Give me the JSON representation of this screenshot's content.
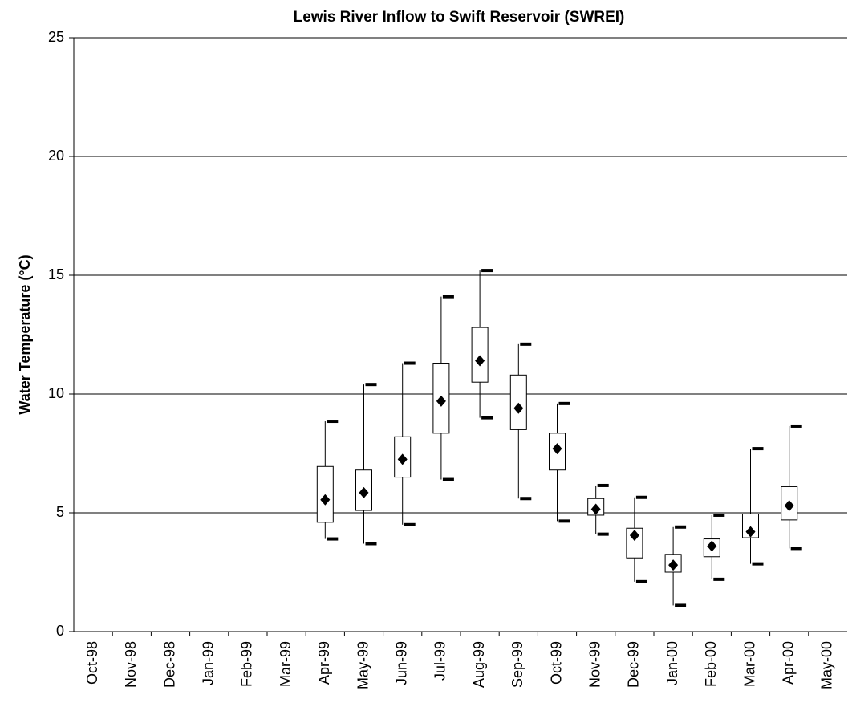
{
  "chart_data": {
    "type": "box",
    "title": "Lewis River Inflow to Swift Reservoir (SWREI)",
    "y_label": "Water Temperature (°C)",
    "categories": [
      "Oct-98",
      "Nov-98",
      "Dec-98",
      "Jan-99",
      "Feb-99",
      "Mar-99",
      "Apr-99",
      "May-99",
      "Jun-99",
      "Jul-99",
      "Aug-99",
      "Sep-99",
      "Oct-99",
      "Nov-99",
      "Dec-99",
      "Jan-00",
      "Feb-00",
      "Mar-00",
      "Apr-00",
      "May-00"
    ],
    "max": [
      null,
      null,
      null,
      null,
      null,
      null,
      8.85,
      10.4,
      11.3,
      14.1,
      15.2,
      12.1,
      9.6,
      6.15,
      5.65,
      4.4,
      4.9,
      7.7,
      8.65,
      null
    ],
    "q3": [
      null,
      null,
      null,
      null,
      null,
      null,
      6.95,
      6.8,
      8.2,
      11.3,
      12.8,
      10.8,
      8.35,
      5.6,
      4.35,
      3.25,
      3.9,
      4.95,
      6.1,
      null
    ],
    "mean": [
      null,
      null,
      null,
      null,
      null,
      null,
      5.55,
      5.85,
      7.25,
      9.7,
      11.4,
      9.4,
      7.7,
      5.15,
      4.05,
      2.8,
      3.6,
      4.2,
      5.3,
      null
    ],
    "q1": [
      null,
      null,
      null,
      null,
      null,
      null,
      4.6,
      5.1,
      6.5,
      8.35,
      10.5,
      8.5,
      6.8,
      4.9,
      3.1,
      2.5,
      3.15,
      3.95,
      4.7,
      null
    ],
    "min": [
      null,
      null,
      null,
      null,
      null,
      null,
      3.9,
      3.7,
      4.5,
      6.4,
      9.0,
      5.6,
      4.65,
      4.1,
      2.1,
      1.1,
      2.2,
      2.85,
      3.5,
      null
    ],
    "ylim": [
      0,
      25
    ],
    "yticks": [
      0,
      5,
      10,
      15,
      20,
      25
    ],
    "grid": true,
    "color": "#000000"
  }
}
